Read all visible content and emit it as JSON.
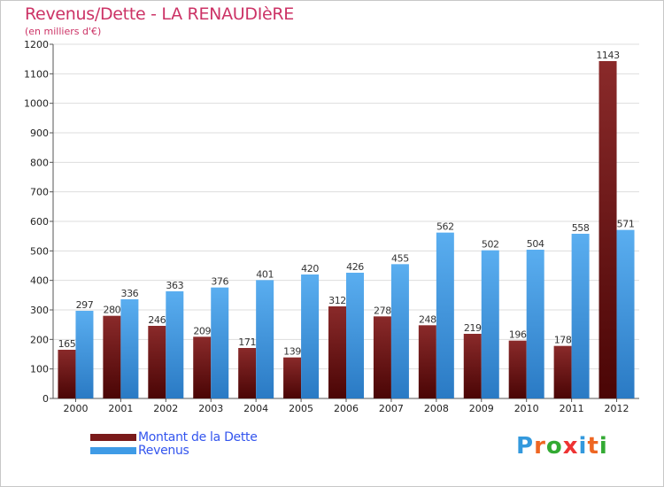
{
  "header": {
    "title": "Revenus/Dette - LA RENAUDIèRE",
    "subtitle": "(en milliers d'€)"
  },
  "legend": {
    "items": [
      {
        "label": "Montant de la Dette",
        "color": "#7a1a1a"
      },
      {
        "label": "Revenus",
        "color": "#3f9be6"
      }
    ]
  },
  "logo": {
    "text": "Proxiti",
    "letter_colors": [
      "#3399dd",
      "#ee6622",
      "#33aa33",
      "#ee3333",
      "#3399dd",
      "#ee6622",
      "#33aa33"
    ]
  },
  "colors": {
    "debt_top": "#8a2a2a",
    "debt_bottom": "#4a0505",
    "revenue_top": "#5aaef0",
    "revenue_bottom": "#2a7ac4",
    "grid": "#dddddd",
    "axis": "#555555"
  },
  "chart_data": {
    "type": "bar",
    "title": "Revenus/Dette - LA RENAUDIèRE",
    "ylabel": "(en milliers d'€)",
    "xlabel": "",
    "ylim": [
      0,
      1200
    ],
    "yticks": [
      0,
      100,
      200,
      300,
      400,
      500,
      600,
      700,
      800,
      900,
      1000,
      1100,
      1200
    ],
    "grid": true,
    "legend_position": "bottom-left",
    "categories": [
      "2000",
      "2001",
      "2002",
      "2003",
      "2004",
      "2005",
      "2006",
      "2007",
      "2008",
      "2009",
      "2010",
      "2011",
      "2012"
    ],
    "series": [
      {
        "name": "Montant de la Dette",
        "values": [
          165,
          280,
          246,
          209,
          171,
          139,
          312,
          278,
          248,
          219,
          196,
          178,
          1143
        ]
      },
      {
        "name": "Revenus",
        "values": [
          297,
          336,
          363,
          376,
          401,
          420,
          426,
          455,
          562,
          502,
          504,
          558,
          571
        ]
      }
    ]
  }
}
